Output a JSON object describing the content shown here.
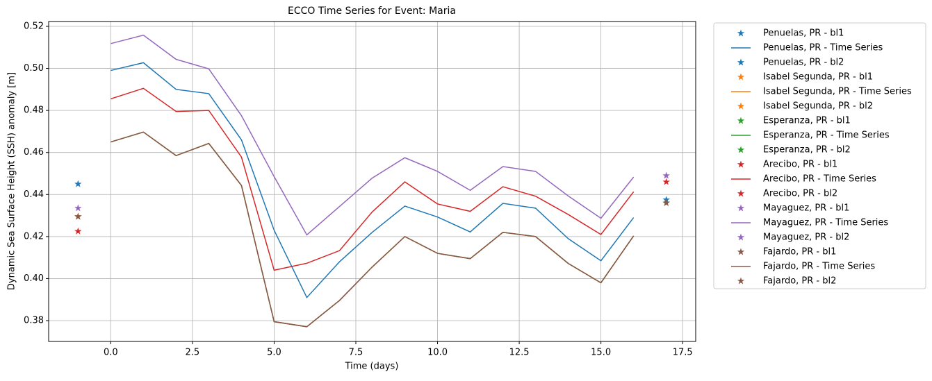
{
  "chart_data": {
    "type": "line",
    "title": "ECCO Time Series for Event: Maria",
    "x_label": "Time (days)",
    "y_label": "Dynamic Sea Surface Height (SSH) anomaly [m]",
    "xlim": [
      -1.9,
      17.9
    ],
    "ylim": [
      0.3701,
      0.5223
    ],
    "xticks": [
      {
        "value": 0,
        "label": "0.0"
      },
      {
        "value": 2.5,
        "label": "2.5"
      },
      {
        "value": 5,
        "label": "5.0"
      },
      {
        "value": 7.5,
        "label": "7.5"
      },
      {
        "value": 10,
        "label": "10.0"
      },
      {
        "value": 12.5,
        "label": "12.5"
      },
      {
        "value": 15,
        "label": "15.0"
      },
      {
        "value": 17.5,
        "label": "17.5"
      }
    ],
    "yticks": [
      0.38,
      {
        "value": 0.4,
        "label": "0.40"
      },
      0.42,
      0.44,
      0.46,
      0.48,
      {
        "value": 0.5,
        "label": "0.50"
      },
      0.52
    ],
    "grid": true,
    "legend": "outside-right",
    "series": [
      {
        "name": "Penuelas, PR - bl1",
        "color": "#1f77b4",
        "kind": "marker",
        "x": [
          -1
        ],
        "values": [
          0.445
        ]
      },
      {
        "name": "Penuelas, PR - Time Series",
        "color": "#1f77b4",
        "kind": "line",
        "x": [
          0,
          1,
          2,
          3,
          4,
          5,
          6,
          7,
          8,
          9,
          10,
          11,
          12,
          13,
          14,
          15,
          16
        ],
        "values": [
          0.499,
          0.5027,
          0.49,
          0.488,
          0.466,
          0.423,
          0.391,
          0.408,
          0.422,
          0.4345,
          0.4293,
          0.4222,
          0.4358,
          0.4335,
          0.419,
          0.4085,
          0.429
        ]
      },
      {
        "name": "Penuelas, PR - bl2",
        "color": "#1f77b4",
        "kind": "marker",
        "x": [
          17
        ],
        "values": [
          0.4375
        ]
      },
      {
        "name": "Isabel Segunda, PR - bl1",
        "color": "#ff7f0e",
        "kind": "marker",
        "x": [
          -1
        ],
        "values": [
          0.4295
        ]
      },
      {
        "name": "Isabel Segunda, PR - Time Series",
        "color": "#ff7f0e",
        "kind": "line",
        "x": [
          0,
          1,
          2,
          3,
          4,
          5,
          6,
          7,
          8,
          9,
          10,
          11,
          12,
          13,
          14,
          15,
          16
        ],
        "values": [
          0.465,
          0.4697,
          0.4585,
          0.4643,
          0.4443,
          0.3795,
          0.3771,
          0.3896,
          0.4055,
          0.42,
          0.412,
          0.4095,
          0.422,
          0.42,
          0.4072,
          0.398,
          0.4203
        ]
      },
      {
        "name": "Isabel Segunda, PR - bl2",
        "color": "#ff7f0e",
        "kind": "marker",
        "x": [
          17
        ],
        "values": [
          0.436
        ]
      },
      {
        "name": "Esperanza, PR - bl1",
        "color": "#2ca02c",
        "kind": "marker",
        "x": [
          -1
        ],
        "values": [
          0.4295
        ]
      },
      {
        "name": "Esperanza, PR - Time Series",
        "color": "#2ca02c",
        "kind": "line",
        "x": [
          0,
          1,
          2,
          3,
          4,
          5,
          6,
          7,
          8,
          9,
          10,
          11,
          12,
          13,
          14,
          15,
          16
        ],
        "values": [
          0.465,
          0.4697,
          0.4585,
          0.4643,
          0.4443,
          0.3795,
          0.3771,
          0.3896,
          0.4055,
          0.42,
          0.412,
          0.4095,
          0.422,
          0.42,
          0.4072,
          0.398,
          0.4203
        ]
      },
      {
        "name": "Esperanza, PR - bl2",
        "color": "#2ca02c",
        "kind": "marker",
        "x": [
          17
        ],
        "values": [
          0.436
        ]
      },
      {
        "name": "Arecibo, PR - bl1",
        "color": "#d62728",
        "kind": "marker",
        "x": [
          -1
        ],
        "values": [
          0.4225
        ]
      },
      {
        "name": "Arecibo, PR - Time Series",
        "color": "#d62728",
        "kind": "line",
        "x": [
          0,
          1,
          2,
          3,
          4,
          5,
          6,
          7,
          8,
          9,
          10,
          11,
          12,
          13,
          14,
          15,
          16
        ],
        "values": [
          0.4855,
          0.4905,
          0.4795,
          0.48,
          0.4578,
          0.404,
          0.4073,
          0.4133,
          0.4317,
          0.446,
          0.4355,
          0.432,
          0.4437,
          0.4392,
          0.4305,
          0.421,
          0.4413
        ]
      },
      {
        "name": "Arecibo, PR - bl2",
        "color": "#d62728",
        "kind": "marker",
        "x": [
          17
        ],
        "values": [
          0.446
        ]
      },
      {
        "name": "Mayaguez, PR - bl1",
        "color": "#9467bd",
        "kind": "marker",
        "x": [
          -1
        ],
        "values": [
          0.4335
        ]
      },
      {
        "name": "Mayaguez, PR - Time Series",
        "color": "#9467bd",
        "kind": "line",
        "x": [
          0,
          1,
          2,
          3,
          4,
          5,
          6,
          7,
          8,
          9,
          10,
          11,
          12,
          13,
          14,
          15,
          16
        ],
        "values": [
          0.5118,
          0.5158,
          0.5043,
          0.4998,
          0.4775,
          0.4485,
          0.4208,
          0.4343,
          0.4478,
          0.4575,
          0.451,
          0.442,
          0.4533,
          0.451,
          0.4393,
          0.4287,
          0.4483
        ]
      },
      {
        "name": "Mayaguez, PR - bl2",
        "color": "#9467bd",
        "kind": "marker",
        "x": [
          17
        ],
        "values": [
          0.449
        ]
      },
      {
        "name": "Fajardo, PR - bl1",
        "color": "#8c564b",
        "kind": "marker",
        "x": [
          -1
        ],
        "values": [
          0.4295
        ]
      },
      {
        "name": "Fajardo, PR - Time Series",
        "color": "#8c564b",
        "kind": "line",
        "x": [
          0,
          1,
          2,
          3,
          4,
          5,
          6,
          7,
          8,
          9,
          10,
          11,
          12,
          13,
          14,
          15,
          16
        ],
        "values": [
          0.465,
          0.4697,
          0.4585,
          0.4643,
          0.4443,
          0.3795,
          0.3771,
          0.3896,
          0.4055,
          0.42,
          0.412,
          0.4095,
          0.422,
          0.42,
          0.4072,
          0.398,
          0.4203
        ]
      },
      {
        "name": "Fajardo, PR - bl2",
        "color": "#8c564b",
        "kind": "marker",
        "x": [
          17
        ],
        "values": [
          0.436
        ]
      }
    ]
  }
}
